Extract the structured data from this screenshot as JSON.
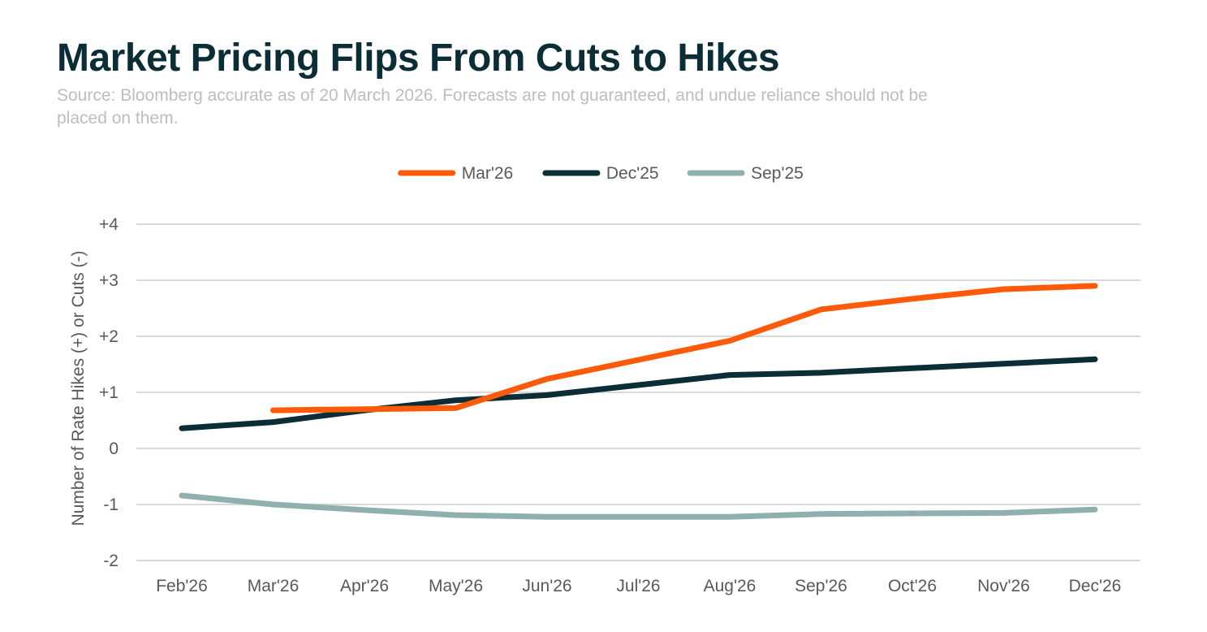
{
  "chart_data": {
    "type": "line",
    "title": "Market Pricing Flips From Cuts to Hikes",
    "subtitle": "Source: Bloomberg accurate as of 20 March 2026. Forecasts are not guaranteed, and undue reliance should not be placed on them.",
    "xlabel": "",
    "ylabel": "Number of Rate Hikes (+) or Cuts (-)",
    "categories": [
      "Feb'26",
      "Mar'26",
      "Apr'26",
      "May'26",
      "Jun'26",
      "Jul'26",
      "Aug'26",
      "Sep'26",
      "Oct'26",
      "Nov'26",
      "Dec'26"
    ],
    "ylim": [
      -2,
      4
    ],
    "yticks": [
      4,
      3,
      2,
      1,
      0,
      -1,
      -2
    ],
    "ytick_labels": [
      "+4",
      "+3",
      "+2",
      "+1",
      "0",
      "-1",
      "-2"
    ],
    "grid": true,
    "legend_position": "top-center",
    "series": [
      {
        "name": "Mar'26",
        "color": "#ff5a0a",
        "values": [
          null,
          0.68,
          0.7,
          0.72,
          1.24,
          1.58,
          1.92,
          2.48,
          2.67,
          2.84,
          2.9
        ]
      },
      {
        "name": "Dec'25",
        "color": "#0b2e36",
        "values": [
          0.36,
          0.47,
          0.68,
          0.86,
          0.95,
          1.13,
          1.31,
          1.35,
          1.43,
          1.51,
          1.59
        ]
      },
      {
        "name": "Sep'25",
        "color": "#8fb0ad",
        "values": [
          -0.84,
          -1.0,
          -1.1,
          -1.19,
          -1.22,
          -1.22,
          -1.22,
          -1.17,
          -1.16,
          -1.15,
          -1.09
        ]
      }
    ]
  }
}
